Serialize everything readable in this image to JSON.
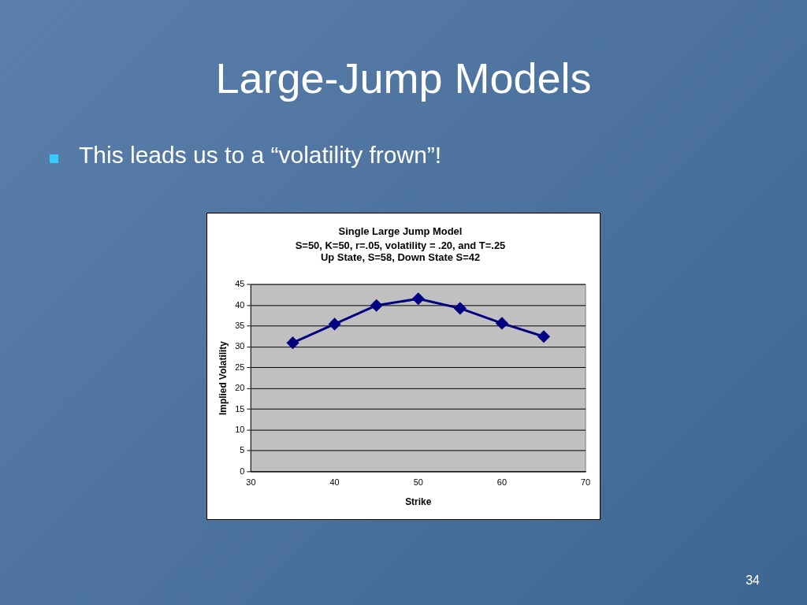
{
  "chart_data": {
    "type": "line",
    "title": "Single Large Jump Model",
    "subtitle": "S=50, K=50, r=.05, volatility = .20, and T=.25\nUp State, S=58, Down State S=42",
    "annotations": [
      "Large-Jump Models",
      "This leads us to a “volatility frown”!",
      "34"
    ],
    "xlabel": "Strike",
    "ylabel": "Implied Volatility",
    "x": [
      35,
      40,
      45,
      50,
      55,
      60,
      65
    ],
    "series": [
      {
        "color": "#000080",
        "values": [
          31,
          35.5,
          40,
          41.6,
          39.3,
          35.7,
          32.5
        ]
      }
    ],
    "xlim": [
      30,
      70
    ],
    "xticks": [
      30,
      40,
      50,
      60,
      70
    ],
    "ylim": [
      0,
      45
    ],
    "yticks": [
      0,
      5,
      10,
      15,
      20,
      25,
      30,
      35,
      40,
      45
    ],
    "grid": "y",
    "legend": false,
    "marker": "diamond",
    "line_style": "solid"
  }
}
